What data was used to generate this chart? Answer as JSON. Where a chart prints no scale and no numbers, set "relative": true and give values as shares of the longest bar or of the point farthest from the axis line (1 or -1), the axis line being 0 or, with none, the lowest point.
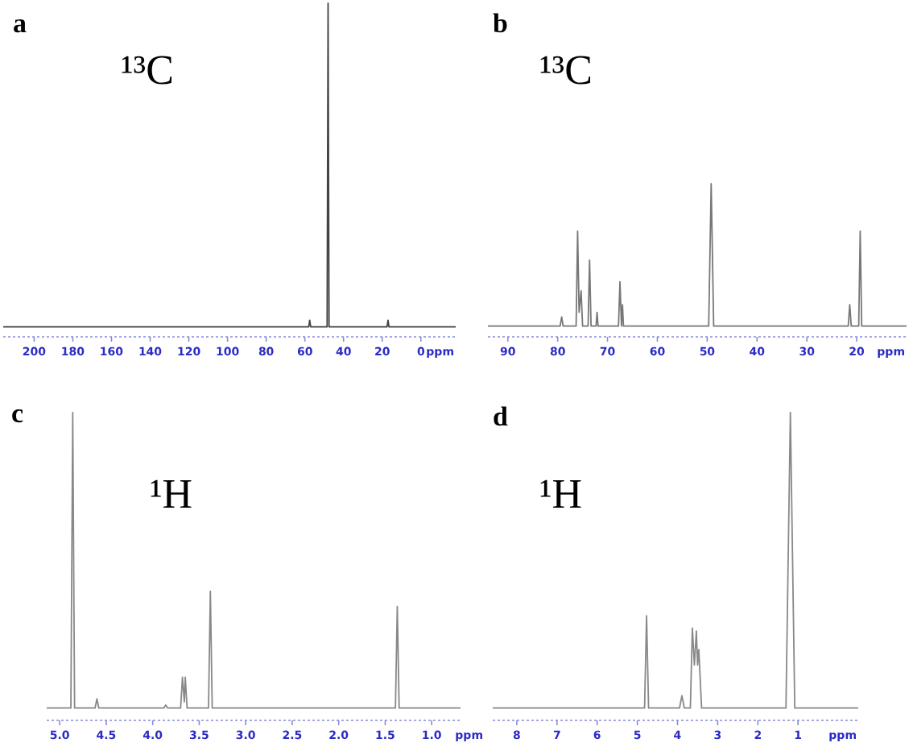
{
  "chart_data": [
    {
      "type": "line",
      "title": "a",
      "annotations": [
        "¹³C"
      ],
      "xlabel": "ppm",
      "relative": true,
      "xlim": [
        216,
        -18
      ],
      "xticks": [
        200,
        180,
        160,
        140,
        120,
        100,
        80,
        60,
        40,
        20,
        0
      ],
      "series": [
        {
          "color": "#444444",
          "x": [
            216,
            58,
            57.5,
            57,
            48.5,
            48,
            47.5,
            17.5,
            17,
            16.5,
            -18
          ],
          "values": [
            0.03,
            0.03,
            0.05,
            0.03,
            0.03,
            1,
            0.03,
            0.03,
            0.05,
            0.03,
            0.03
          ]
        }
      ]
    },
    {
      "type": "line",
      "title": "b",
      "annotations": [
        "¹³C"
      ],
      "xlabel": "ppm",
      "relative": true,
      "xlim": [
        94,
        10
      ],
      "xticks": [
        90,
        80,
        70,
        60,
        50,
        40,
        30,
        20
      ],
      "series": [
        {
          "color": "#777777",
          "x": [
            94,
            79.5,
            79.2,
            78.9,
            76.3,
            76,
            75.7,
            75.3,
            75,
            73.9,
            73.6,
            73.3,
            72.3,
            72.1,
            71.9,
            67.8,
            67.5,
            67.2,
            67,
            66.8,
            49.7,
            49.2,
            48.7,
            21.7,
            21.4,
            21.1,
            19.6,
            19.3,
            19,
            10
          ],
          "values": [
            0.07,
            0.07,
            0.13,
            0.07,
            0.07,
            0.69,
            0.16,
            0.3,
            0.07,
            0.07,
            0.5,
            0.07,
            0.07,
            0.16,
            0.07,
            0.07,
            0.36,
            0.07,
            0.21,
            0.07,
            0.07,
            1,
            0.07,
            0.07,
            0.21,
            0.07,
            0.07,
            0.69,
            0.07,
            0.07
          ]
        }
      ]
    },
    {
      "type": "line",
      "title": "c",
      "annotations": [
        "¹H"
      ],
      "xlabel": "ppm",
      "relative": true,
      "xlim": [
        5.14,
        0.69
      ],
      "xticks": [
        {
          "value": 5,
          "label": "5.0"
        },
        4.5,
        {
          "value": 4,
          "label": "4.0"
        },
        3.5,
        {
          "value": 3,
          "label": "3.0"
        },
        2.5,
        {
          "value": 2,
          "label": "2.0"
        },
        1.5,
        {
          "value": 1,
          "label": "1.0"
        }
      ],
      "series": [
        {
          "color": "#888888",
          "x": [
            5.14,
            4.88,
            4.86,
            4.84,
            4.62,
            4.6,
            4.58,
            3.88,
            3.86,
            3.84,
            3.7,
            3.68,
            3.66,
            3.65,
            3.63,
            3.4,
            3.38,
            3.36,
            1.39,
            1.37,
            1.35,
            0.69
          ],
          "values": [
            0.04,
            0.04,
            1,
            0.04,
            0.04,
            0.07,
            0.04,
            0.04,
            0.05,
            0.04,
            0.04,
            0.14,
            0.06,
            0.14,
            0.04,
            0.04,
            0.42,
            0.04,
            0.04,
            0.37,
            0.04,
            0.04
          ]
        }
      ]
    },
    {
      "type": "line",
      "title": "d",
      "annotations": [
        "¹H"
      ],
      "xlabel": "ppm",
      "relative": true,
      "xlim": [
        8.6,
        -0.5
      ],
      "xticks": [
        8,
        7,
        6,
        5,
        4,
        3,
        2,
        1
      ],
      "series": [
        {
          "color": "#888888",
          "x": [
            8.6,
            4.82,
            4.77,
            4.72,
            3.95,
            3.89,
            3.83,
            3.68,
            3.63,
            3.58,
            3.53,
            3.5,
            3.47,
            3.4,
            1.3,
            1.19,
            1.08,
            -0.5
          ],
          "values": [
            0.04,
            0.04,
            0.34,
            0.04,
            0.04,
            0.08,
            0.04,
            0.04,
            0.3,
            0.18,
            0.29,
            0.18,
            0.23,
            0.04,
            0.04,
            1,
            0.04,
            0.04
          ]
        }
      ]
    }
  ]
}
